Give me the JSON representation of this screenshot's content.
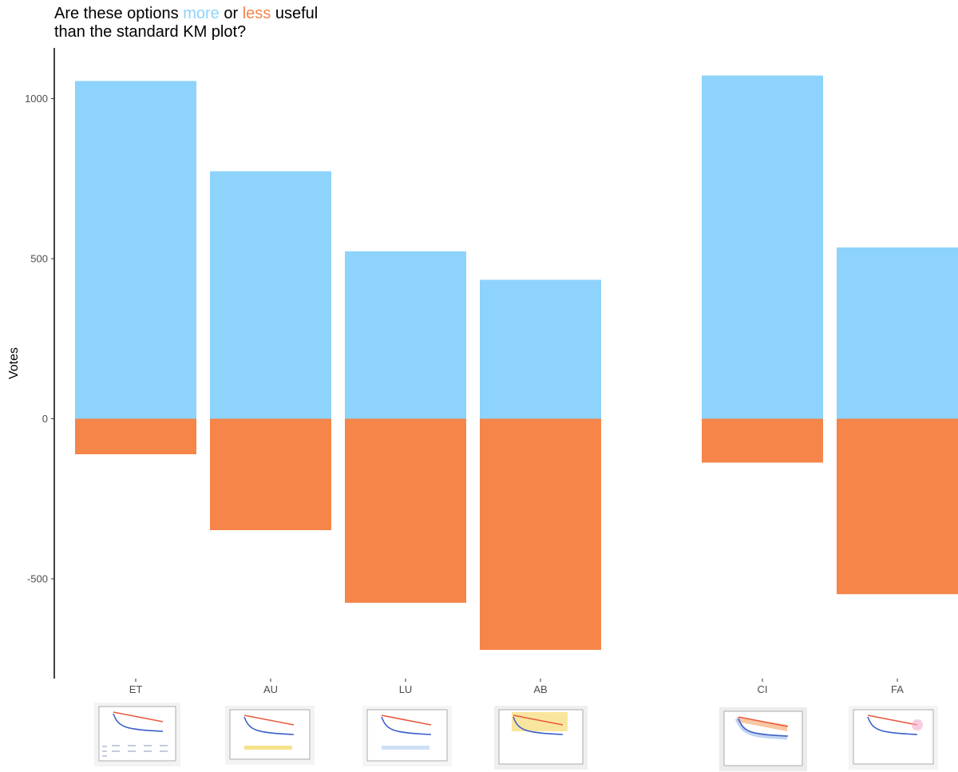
{
  "chart_data": {
    "type": "bar",
    "title_parts": {
      "prefix": "Are these options",
      "more": "more",
      "or": "or",
      "less": "less",
      "suffix": "useful",
      "line2": "than the standard KM plot?"
    },
    "ylabel": "Votes",
    "ylim": [
      -805,
      1160
    ],
    "yticks": [
      1000,
      500,
      0,
      -500
    ],
    "grid": false,
    "categories": [
      "ET",
      "AU",
      "LU",
      "AB",
      "CI",
      "FA"
    ],
    "groups": [
      [
        "ET",
        "AU",
        "LU",
        "AB"
      ],
      [
        "CI",
        "FA"
      ]
    ],
    "series": [
      {
        "name": "more",
        "color": "#8dd3fc",
        "values": [
          1055,
          773,
          523,
          434,
          1072,
          535
        ]
      },
      {
        "name": "less",
        "color": "#f58549",
        "values": [
          -111,
          -348,
          -575,
          -722,
          -137,
          -548
        ]
      }
    ],
    "category_icons": [
      "km-sketch-numbers-icon",
      "km-sketch-yellow-band-icon",
      "km-sketch-lower-curve-icon",
      "km-sketch-yellow-background-icon",
      "km-sketch-confidence-band-icon",
      "km-sketch-fading-icon"
    ]
  }
}
